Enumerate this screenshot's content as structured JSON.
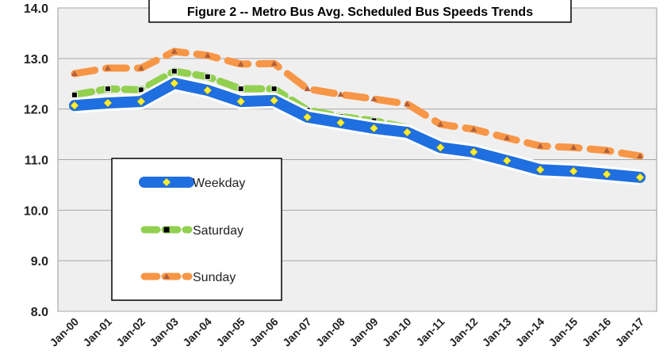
{
  "chart_data": {
    "type": "line",
    "title": "Figure 2 -- Metro Bus Avg. Scheduled Bus Speeds Trends",
    "categories": [
      "Jan-00",
      "Jan-01",
      "Jan-02",
      "Jan-03",
      "Jan-04",
      "Jan-05",
      "Jan-06",
      "Jan-07",
      "Jan-08",
      "Jan-09",
      "Jan-10",
      "Jan-11",
      "Jan-12",
      "Jan-13",
      "Jan-14",
      "Jan-15",
      "Jan-16",
      "Jan-17"
    ],
    "series": [
      {
        "name": "Weekday",
        "color": "#1f6fe0",
        "marker_color": "#ffee33",
        "values": [
          12.07,
          12.12,
          12.15,
          12.51,
          12.37,
          12.15,
          12.17,
          11.84,
          11.73,
          11.62,
          11.54,
          11.24,
          11.15,
          10.98,
          10.8,
          10.77,
          10.71,
          10.65
        ]
      },
      {
        "name": "Saturday",
        "color": "#92d050",
        "marker_color": "#000000",
        "values": [
          12.28,
          12.4,
          12.38,
          12.75,
          12.64,
          12.4,
          12.4,
          11.98,
          11.85,
          11.77,
          11.63,
          11.24,
          11.16,
          10.98,
          10.8,
          10.77,
          10.71,
          10.65
        ]
      },
      {
        "name": "Sunday",
        "color": "#f79646",
        "marker_color": "#b0603a",
        "values": [
          12.7,
          12.81,
          12.81,
          13.14,
          13.06,
          12.89,
          12.9,
          12.4,
          12.29,
          12.2,
          12.1,
          11.7,
          11.6,
          11.43,
          11.27,
          11.24,
          11.18,
          11.07
        ]
      }
    ],
    "ylim": [
      8,
      14
    ],
    "yticks": [
      {
        "value": 8,
        "label": "8.0"
      },
      {
        "value": 9,
        "label": "9.0"
      },
      {
        "value": 10,
        "label": "10.0"
      },
      {
        "value": 11,
        "label": "11.0"
      },
      {
        "value": 12,
        "label": "12.0"
      },
      {
        "value": 13,
        "label": "13.0"
      },
      {
        "value": 14,
        "label": "14.0"
      }
    ],
    "grid": true
  }
}
